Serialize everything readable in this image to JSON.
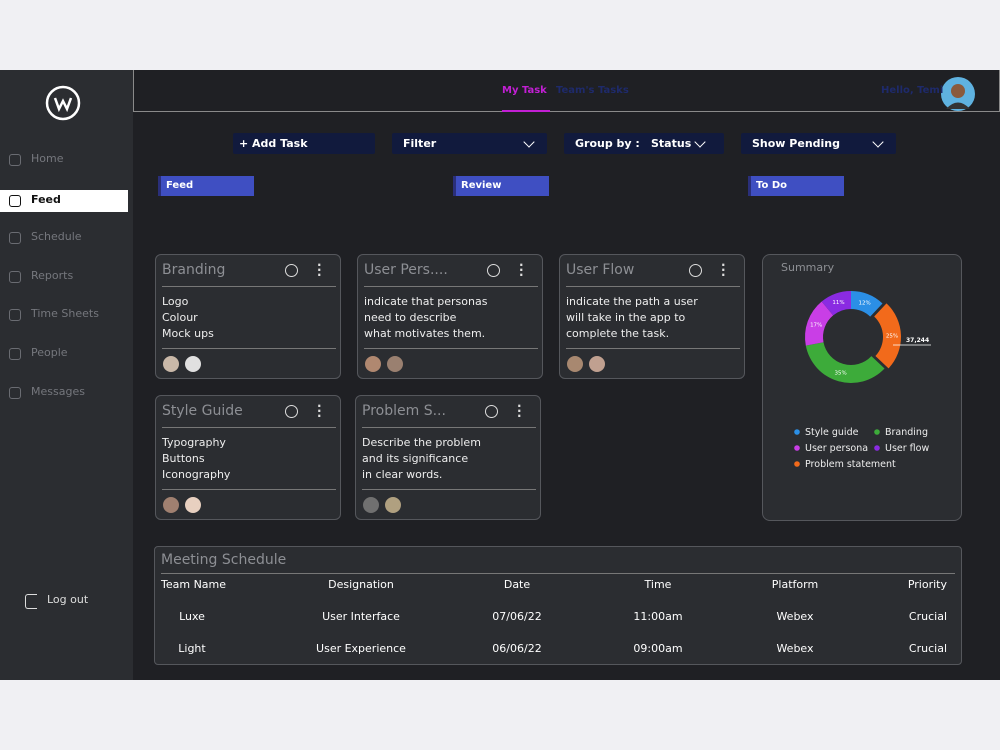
{
  "sidebar": {
    "nav": [
      "Home",
      "Feed",
      "Schedule",
      "Reports",
      "Time Sheets",
      "People",
      "Messages"
    ],
    "logout": "Log out"
  },
  "header": {
    "tabs": [
      "My Task",
      "Team's Tasks"
    ],
    "greeting": "Hello, Temi"
  },
  "toolbar": {
    "add": "+ Add Task",
    "filter": "Filter",
    "group_label": "Group by :",
    "group_value": "Status",
    "pending": "Show Pending"
  },
  "columns": [
    "Feed",
    "Review",
    "To Do"
  ],
  "cards": [
    {
      "title": "Branding",
      "lines": [
        "Logo",
        "Colour",
        "Mock ups"
      ]
    },
    {
      "title": "User Pers....",
      "lines": [
        "indicate that personas",
        "need to describe",
        "what motivates them."
      ]
    },
    {
      "title": "User Flow",
      "lines": [
        "indicate the path a user",
        "will take in the app to",
        "complete the task."
      ]
    },
    {
      "title": "Style Guide",
      "lines": [
        "Typography",
        "Buttons",
        "Iconography"
      ]
    },
    {
      "title": "Problem S...",
      "lines": [
        "Describe the problem",
        "and its significance",
        "in clear words."
      ]
    }
  ],
  "summary": {
    "title": "Summary",
    "callout": "37,244",
    "segments": [
      {
        "name": "Style guide",
        "color": "#2b8fe6",
        "value": 12,
        "value_label": "12%"
      },
      {
        "name": "Branding",
        "color": "#3dab3a",
        "value": 35,
        "value_label": "35%"
      },
      {
        "name": "User persona",
        "color": "#c93ee6",
        "value": 17,
        "value_label": "17%"
      },
      {
        "name": "User flow",
        "color": "#8a2be2",
        "value": 11,
        "value_label": "11%"
      },
      {
        "name": "Problem statement",
        "color": "#f26a1b",
        "value": 25,
        "value_label": "25%"
      }
    ]
  },
  "meeting": {
    "title": "Meeting Schedule",
    "columns": [
      "Team Name",
      "Designation",
      "Date",
      "Time",
      "Platform",
      "Priority"
    ],
    "rows": [
      [
        "Luxe",
        "User Interface",
        "07/06/22",
        "11:00am",
        "Webex",
        "Crucial"
      ],
      [
        "Light",
        "User Experience",
        "06/06/22",
        "09:00am",
        "Webex",
        "Crucial"
      ]
    ]
  }
}
